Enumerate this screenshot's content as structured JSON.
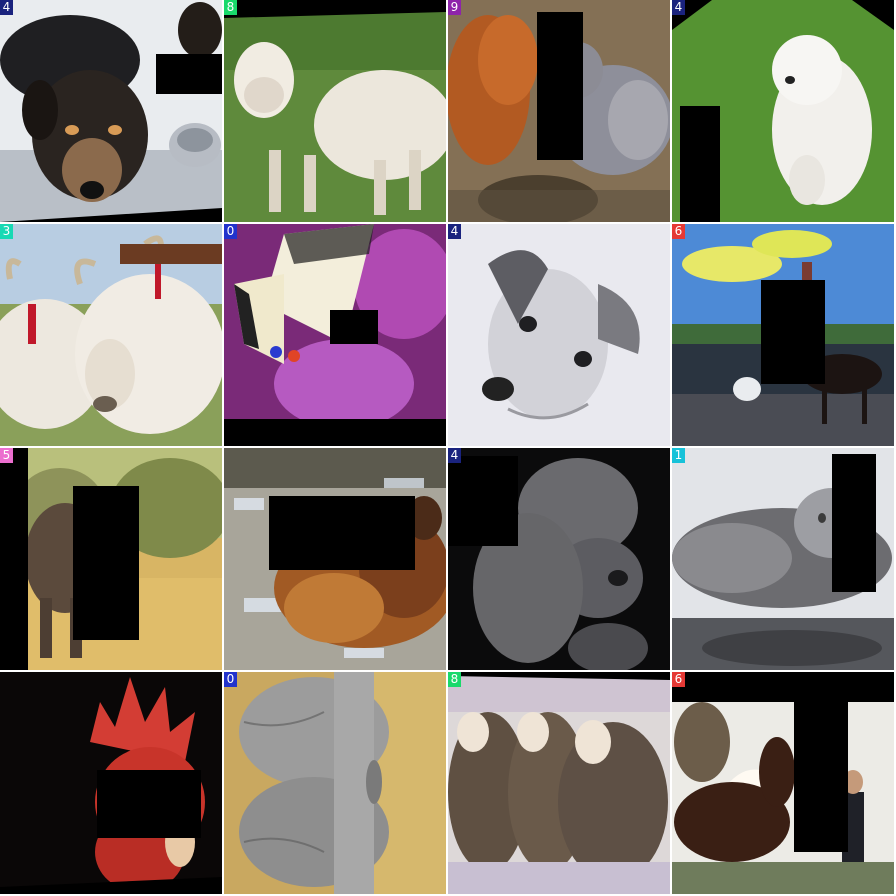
{
  "tiles": [
    {
      "label": "4",
      "label_color": "#1a237e",
      "subject": "dogs-drinking"
    },
    {
      "label": "8",
      "label_color": "#19d96b",
      "subject": "lamb-on-grass"
    },
    {
      "label": "9",
      "label_color": "#8e24aa",
      "subject": "squirrel"
    },
    {
      "label": "4",
      "label_color": "#1a237e",
      "subject": "white-puppy-on-grass"
    },
    {
      "label": "3",
      "label_color": "#17d9b4",
      "subject": "oxen-with-yoke"
    },
    {
      "label": "0",
      "label_color": "#2233cc",
      "subject": "swallowtail-butterfly"
    },
    {
      "label": "4",
      "label_color": "#1a237e",
      "subject": "dog-pencil-drawing"
    },
    {
      "label": "6",
      "label_color": "#e53935",
      "subject": "horse-and-rider"
    },
    {
      "label": "5",
      "label_color": "#ec6fcf",
      "subject": "elephant-in-grassland"
    },
    {
      "label": "",
      "label_color": "#ffffff",
      "subject": "hen-on-gravel"
    },
    {
      "label": "4",
      "label_color": "#1a237e",
      "subject": "grey-poodle"
    },
    {
      "label": "1",
      "label_color": "#17c2d9",
      "subject": "tabby-cat-on-glass"
    },
    {
      "label": "",
      "label_color": "#ffffff",
      "subject": "rooster-head"
    },
    {
      "label": "0",
      "label_color": "#2233cc",
      "subject": "grey-moth-on-wall"
    },
    {
      "label": "8",
      "label_color": "#19d96b",
      "subject": "three-sheep"
    },
    {
      "label": "6",
      "label_color": "#e53935",
      "subject": "horse-with-handler"
    }
  ]
}
